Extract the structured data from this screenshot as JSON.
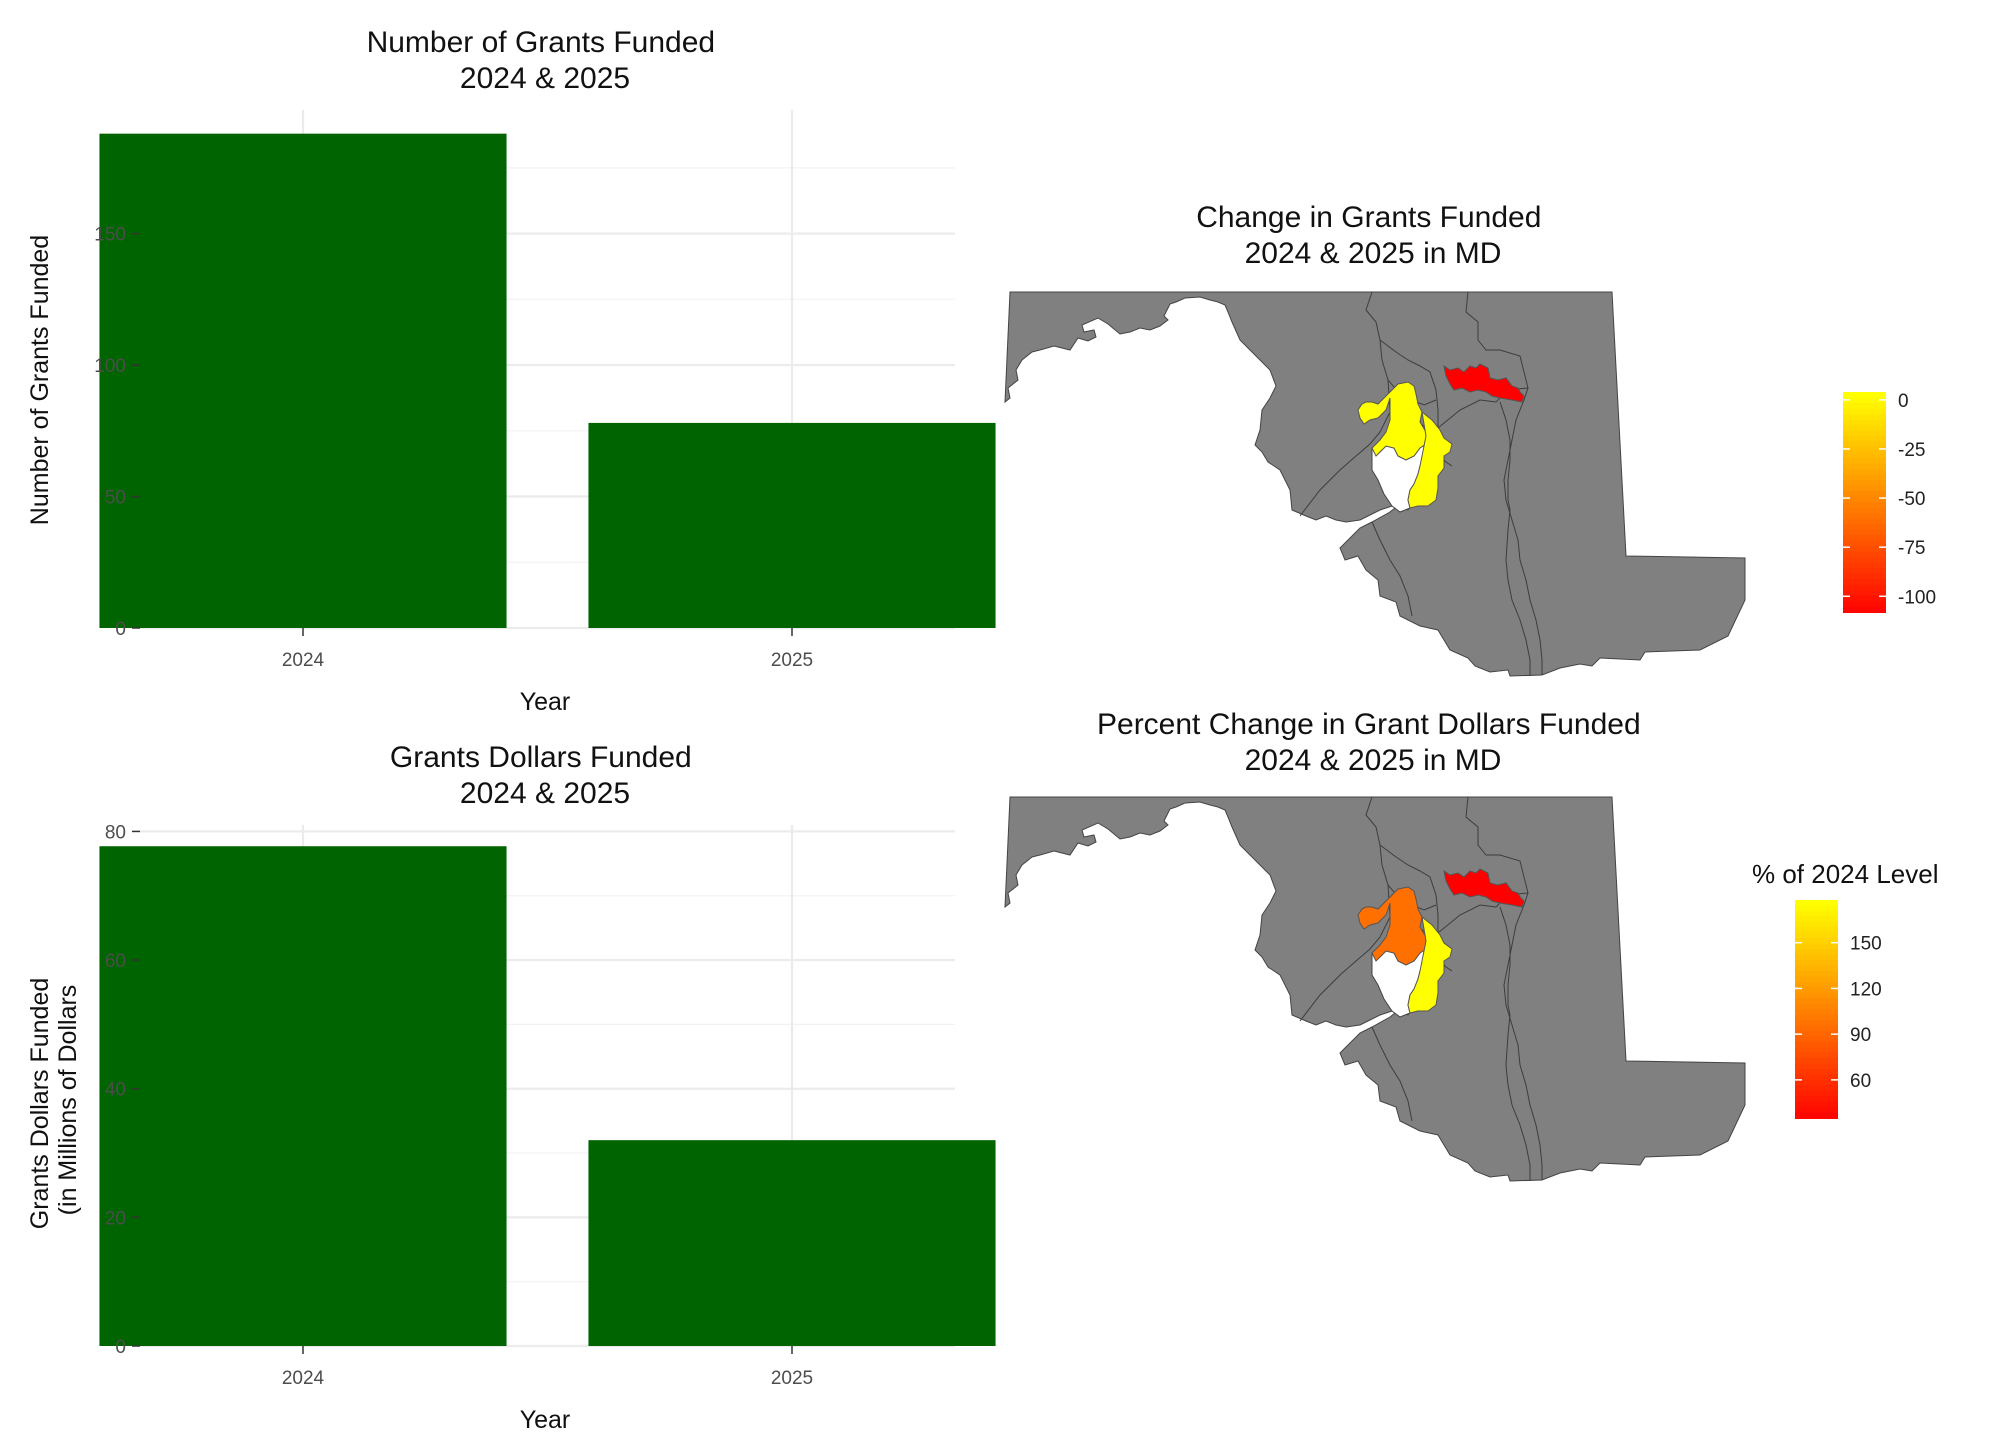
{
  "chart_data": [
    {
      "type": "bar",
      "title": "Number of Grants Funded\n2024 & 2025",
      "xlabel": "Year",
      "ylabel": "Number of Grants Funded",
      "categories": [
        "2024",
        "2025"
      ],
      "values": [
        188,
        78
      ],
      "yticks": [
        0,
        50,
        100,
        150
      ],
      "ylim": [
        0,
        197
      ],
      "bar_color": "#006400",
      "grid": true
    },
    {
      "type": "bar",
      "title": "Grants Dollars Funded\n2024 & 2025",
      "xlabel": "Year",
      "ylabel": "Grants Dollars Funded\n(in Millions of Dollars",
      "categories": [
        "2024",
        "2025"
      ],
      "values": [
        77.7,
        32.0
      ],
      "yticks": [
        0,
        20,
        40,
        60,
        80
      ],
      "ylim": [
        0,
        81
      ],
      "bar_color": "#006400",
      "grid": true
    },
    {
      "type": "map",
      "title": "Change in Grants Funded\n2024 & 2025 in MD",
      "legend_title": "",
      "legend_ticks": [
        0,
        -25,
        -50,
        -75,
        -100
      ],
      "scale_range": [
        -108,
        4
      ],
      "scale_colors": [
        "#ff0000",
        "#ffff00"
      ],
      "base_fill": "#808080",
      "highlighted_regions": [
        {
          "value": 0,
          "color": "#ffff00"
        },
        {
          "value": 0,
          "color": "#ffff00"
        },
        {
          "value": -107,
          "color": "#ff0000"
        }
      ]
    },
    {
      "type": "map",
      "title": "Percent Change in Grant Dollars Funded\n2024 & 2025 in MD",
      "legend_title": "% of 2024 Level",
      "legend_ticks": [
        150,
        120,
        90,
        60
      ],
      "scale_range": [
        35,
        178
      ],
      "scale_colors": [
        "#ff0000",
        "#ffff00"
      ],
      "base_fill": "#808080",
      "highlighted_regions": [
        {
          "value": 90,
          "color": "#ff7000"
        },
        {
          "value": 178,
          "color": "#ffff00"
        },
        {
          "value": 37,
          "color": "#ff0000"
        }
      ]
    }
  ]
}
